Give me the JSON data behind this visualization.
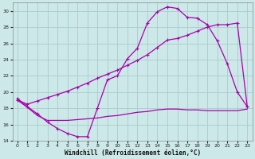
{
  "background_color": "#cce8e8",
  "grid_color": "#aacccc",
  "line_color": "#aa00aa",
  "xlim": [
    -0.5,
    23.5
  ],
  "ylim": [
    14,
    31
  ],
  "yticks": [
    14,
    16,
    18,
    20,
    22,
    24,
    26,
    28,
    30
  ],
  "xticks": [
    0,
    1,
    2,
    3,
    4,
    5,
    6,
    7,
    8,
    9,
    10,
    11,
    12,
    13,
    14,
    15,
    16,
    17,
    18,
    19,
    20,
    21,
    22,
    23
  ],
  "xlabel": "Windchill (Refroidissement éolien,°C)",
  "series1_x": [
    0,
    1,
    2,
    3,
    4,
    5,
    6,
    7,
    8,
    9,
    10,
    11,
    12,
    13,
    14,
    15,
    16,
    17,
    18,
    19,
    20,
    21,
    22,
    23
  ],
  "series1_y": [
    19.2,
    18.2,
    17.3,
    16.3,
    15.5,
    14.9,
    14.5,
    14.5,
    18.0,
    21.5,
    22.0,
    24.1,
    25.4,
    28.5,
    29.9,
    30.5,
    30.3,
    29.2,
    29.1,
    28.3,
    26.3,
    23.5,
    20.0,
    18.2
  ],
  "series2_x": [
    0,
    1,
    2,
    3,
    4,
    5,
    6,
    7,
    8,
    9,
    10,
    11,
    12,
    13,
    14,
    15,
    16,
    17,
    18,
    19,
    20,
    21,
    22,
    23
  ],
  "series2_y": [
    19.0,
    18.1,
    17.1,
    16.5,
    16.5,
    16.5,
    16.6,
    16.7,
    16.8,
    17.0,
    17.1,
    17.3,
    17.5,
    17.6,
    17.8,
    17.9,
    17.9,
    17.8,
    17.8,
    17.7,
    17.7,
    17.7,
    17.7,
    17.9
  ],
  "series3_x": [
    0,
    1,
    2,
    3,
    4,
    5,
    6,
    7,
    8,
    9,
    10,
    11,
    12,
    13,
    14,
    15,
    16,
    17,
    18,
    19,
    20,
    21,
    22,
    23
  ],
  "series3_y": [
    19.0,
    18.5,
    18.9,
    19.3,
    19.7,
    20.1,
    20.6,
    21.1,
    21.7,
    22.2,
    22.7,
    23.3,
    23.9,
    24.6,
    25.5,
    26.4,
    26.6,
    27.0,
    27.5,
    28.0,
    28.3,
    28.3,
    28.5,
    18.2
  ]
}
